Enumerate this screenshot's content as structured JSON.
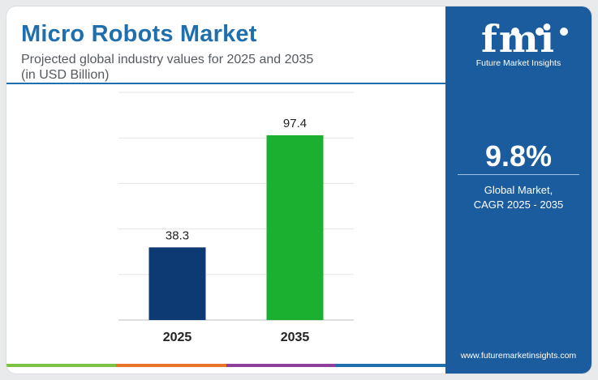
{
  "header": {
    "title": "Micro Robots Market",
    "subtitle_line1": "Projected global industry values for 2025 and 2035",
    "subtitle_line2": "(in USD Billion)"
  },
  "chart_data": {
    "type": "bar",
    "categories": [
      "2025",
      "2035"
    ],
    "values": [
      38.3,
      97.4
    ],
    "data_labels": [
      "38.3",
      "97.4"
    ],
    "bar_colors": [
      "#0d3a73",
      "#1bb02f"
    ],
    "ylim": [
      0,
      120
    ],
    "grid": true,
    "xlabel": "",
    "ylabel": ""
  },
  "panel": {
    "logo_text": "fmi",
    "logo_tagline": "Future Market Insights",
    "cagr_value": "9.8%",
    "cagr_label_line1": "Global Market,",
    "cagr_label_line2": "CAGR 2025 - 2035",
    "url": "www.futuremarketinsights.com",
    "background_color": "#1a5c9e"
  },
  "bottom_strip_colors": [
    "#7cc142",
    "#e8742a",
    "#8e3f9c",
    "#1f6fae"
  ]
}
